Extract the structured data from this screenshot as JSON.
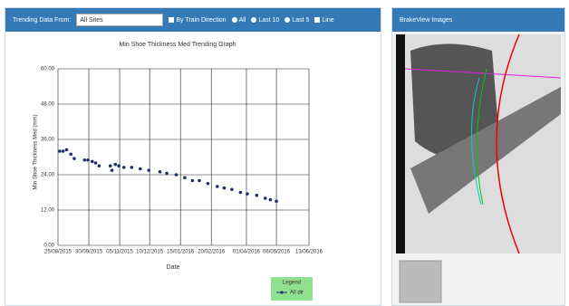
{
  "toolbar": {
    "label": "Trending Data From:",
    "select": "All Sites",
    "options": [
      "By Train Direction",
      "All",
      "Last 10",
      "Last 5",
      "Line"
    ]
  },
  "chart_data": {
    "type": "scatter",
    "title": "Min Shoe Thickness Med Trending Graph",
    "x_label": "Date",
    "y_label": "Min Shoe Thickness Med (mm)",
    "x": [
      "2015-08-27",
      "2015-08-31",
      "2015-09-04",
      "2015-09-09",
      "2015-09-13",
      "2015-09-25",
      "2015-09-29",
      "2015-10-04",
      "2015-10-08",
      "2015-10-12",
      "2015-10-25",
      "2015-10-27",
      "2015-10-31",
      "2015-11-04",
      "2015-11-10",
      "2015-11-19",
      "2015-11-29",
      "2015-12-09",
      "2015-12-22",
      "2015-12-30",
      "2016-01-10",
      "2016-01-20",
      "2016-01-29",
      "2016-02-06",
      "2016-02-16",
      "2016-02-27",
      "2016-03-06",
      "2016-03-15",
      "2016-03-25",
      "2016-04-02",
      "2016-04-13",
      "2016-04-23",
      "2016-04-29",
      "2016-05-06"
    ],
    "series": [
      {
        "name": "All dir",
        "color": "#1f2d6b",
        "values": [
          32,
          32,
          32.5,
          31,
          29.5,
          29,
          29,
          28.5,
          28,
          27,
          27,
          25.5,
          27.5,
          27,
          26.5,
          26.5,
          26,
          25.5,
          25,
          24.5,
          24,
          23,
          22,
          22,
          21,
          20,
          19.5,
          19,
          18,
          17.5,
          17,
          16,
          15.5,
          15
        ]
      }
    ],
    "xlim": [
      "2015-08-25",
      "2016-06-13"
    ],
    "xticks": [
      {
        "value": "2015-08-25",
        "label": "25/08/2015"
      },
      {
        "value": "2015-09-30",
        "label": "30/09/2015"
      },
      {
        "value": "2015-11-05",
        "label": "05/11/2015"
      },
      {
        "value": "2015-12-10",
        "label": "10/12/2015"
      },
      {
        "value": "2016-01-15",
        "label": "15/01/2016"
      },
      {
        "value": "2016-02-20",
        "label": "20/02/2016"
      },
      {
        "value": "2016-04-01",
        "label": "01/04/2016"
      },
      {
        "value": "2016-05-06",
        "label": "06/05/2016"
      },
      {
        "value": "2016-06-13",
        "label": "13/06/2016"
      }
    ],
    "ylim": [
      0,
      60
    ],
    "yticks": [
      {
        "value": 0,
        "label": "0.00"
      },
      {
        "value": 12,
        "label": "12.00"
      },
      {
        "value": 24,
        "label": "24.00"
      },
      {
        "value": 36,
        "label": "36.00"
      },
      {
        "value": 48,
        "label": "48.00"
      },
      {
        "value": 60,
        "label": "60.00"
      }
    ],
    "grid": true,
    "legend_title": "Legend",
    "legend_color": "#8fe08f"
  },
  "side_panel": {
    "title": "BrakeView Images"
  }
}
